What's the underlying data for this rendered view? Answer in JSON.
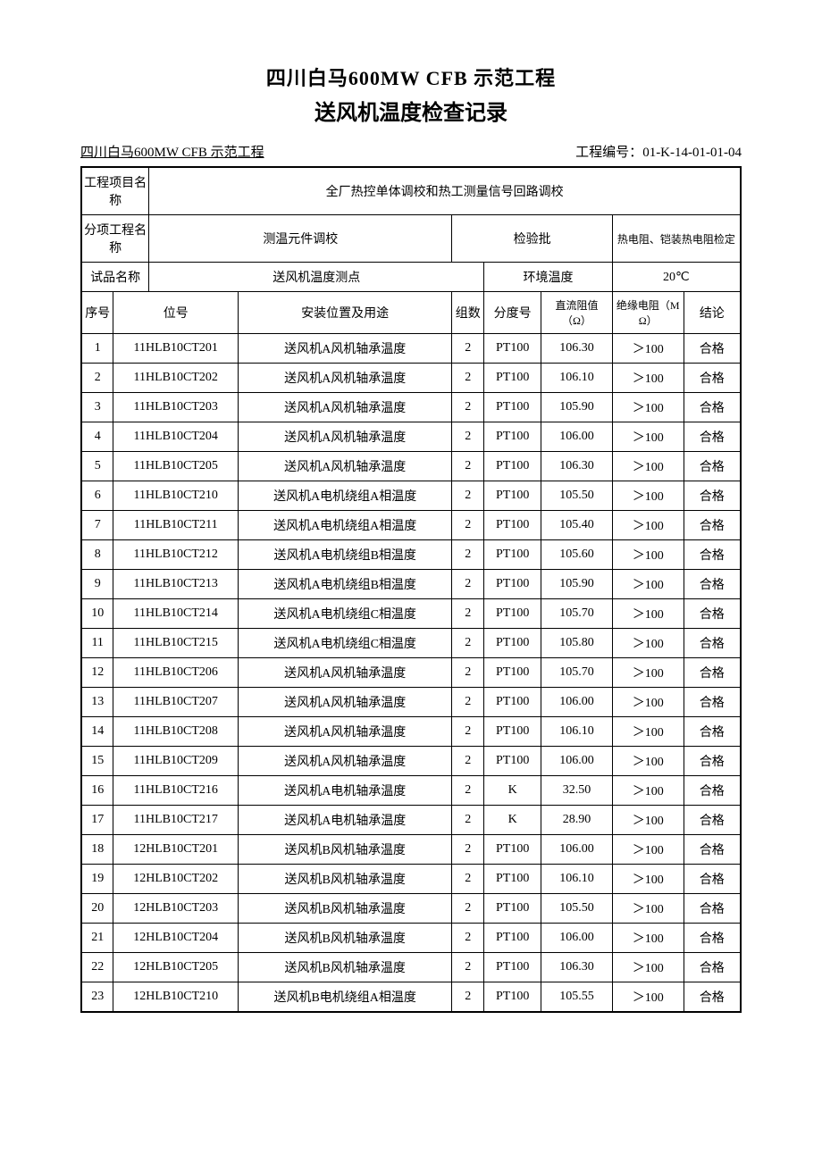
{
  "title_line1": "四川白马600MW CFB 示范工程",
  "title_line2": "送风机温度检查记录",
  "sub_left": "四川白马600MW CFB 示范工程",
  "sub_right_label": "工程编号：",
  "sub_right_value": "01-K-14-01-01-04",
  "hdr": {
    "proj_name_label": "工程项目名称",
    "proj_name_value": "全厂热控单体调校和热工测量信号回路调校",
    "sub_proj_label": "分项工程名称",
    "sub_proj_value": "测温元件调校",
    "inspect_batch_label": "检验批",
    "inspect_batch_value": "热电阻、铠装热电阻检定",
    "sample_name_label": "试品名称",
    "sample_name_value": "送风机温度测点",
    "env_temp_label": "环境温度",
    "env_temp_value": "20℃"
  },
  "cols": {
    "seq": "序号",
    "tag": "位号",
    "desc": "安装位置及用途",
    "group": "组数",
    "scale": "分度号",
    "dcres": "直流阻值（Ω）",
    "ins": "绝缘电阻（MΩ）",
    "result": "结论"
  },
  "rows": [
    {
      "seq": "1",
      "tag": "11HLB10CT201",
      "desc": "送风机A风机轴承温度",
      "grp": "2",
      "scale": "PT100",
      "dc": "106.30",
      "ins": "＞100",
      "res": "合格"
    },
    {
      "seq": "2",
      "tag": "11HLB10CT202",
      "desc": "送风机A风机轴承温度",
      "grp": "2",
      "scale": "PT100",
      "dc": "106.10",
      "ins": "＞100",
      "res": "合格"
    },
    {
      "seq": "3",
      "tag": "11HLB10CT203",
      "desc": "送风机A风机轴承温度",
      "grp": "2",
      "scale": "PT100",
      "dc": "105.90",
      "ins": "＞100",
      "res": "合格"
    },
    {
      "seq": "4",
      "tag": "11HLB10CT204",
      "desc": "送风机A风机轴承温度",
      "grp": "2",
      "scale": "PT100",
      "dc": "106.00",
      "ins": "＞100",
      "res": "合格"
    },
    {
      "seq": "5",
      "tag": "11HLB10CT205",
      "desc": "送风机A风机轴承温度",
      "grp": "2",
      "scale": "PT100",
      "dc": "106.30",
      "ins": "＞100",
      "res": "合格"
    },
    {
      "seq": "6",
      "tag": "11HLB10CT210",
      "desc": "送风机A电机绕组A相温度",
      "grp": "2",
      "scale": "PT100",
      "dc": "105.50",
      "ins": "＞100",
      "res": "合格"
    },
    {
      "seq": "7",
      "tag": "11HLB10CT211",
      "desc": "送风机A电机绕组A相温度",
      "grp": "2",
      "scale": "PT100",
      "dc": "105.40",
      "ins": "＞100",
      "res": "合格"
    },
    {
      "seq": "8",
      "tag": "11HLB10CT212",
      "desc": "送风机A电机绕组B相温度",
      "grp": "2",
      "scale": "PT100",
      "dc": "105.60",
      "ins": "＞100",
      "res": "合格"
    },
    {
      "seq": "9",
      "tag": "11HLB10CT213",
      "desc": "送风机A电机绕组B相温度",
      "grp": "2",
      "scale": "PT100",
      "dc": "105.90",
      "ins": "＞100",
      "res": "合格"
    },
    {
      "seq": "10",
      "tag": "11HLB10CT214",
      "desc": "送风机A电机绕组C相温度",
      "grp": "2",
      "scale": "PT100",
      "dc": "105.70",
      "ins": "＞100",
      "res": "合格"
    },
    {
      "seq": "11",
      "tag": "11HLB10CT215",
      "desc": "送风机A电机绕组C相温度",
      "grp": "2",
      "scale": "PT100",
      "dc": "105.80",
      "ins": "＞100",
      "res": "合格"
    },
    {
      "seq": "12",
      "tag": "11HLB10CT206",
      "desc": "送风机A风机轴承温度",
      "grp": "2",
      "scale": "PT100",
      "dc": "105.70",
      "ins": "＞100",
      "res": "合格"
    },
    {
      "seq": "13",
      "tag": "11HLB10CT207",
      "desc": "送风机A风机轴承温度",
      "grp": "2",
      "scale": "PT100",
      "dc": "106.00",
      "ins": "＞100",
      "res": "合格"
    },
    {
      "seq": "14",
      "tag": "11HLB10CT208",
      "desc": "送风机A风机轴承温度",
      "grp": "2",
      "scale": "PT100",
      "dc": "106.10",
      "ins": "＞100",
      "res": "合格"
    },
    {
      "seq": "15",
      "tag": "11HLB10CT209",
      "desc": "送风机A风机轴承温度",
      "grp": "2",
      "scale": "PT100",
      "dc": "106.00",
      "ins": "＞100",
      "res": "合格"
    },
    {
      "seq": "16",
      "tag": "11HLB10CT216",
      "desc": "送风机A电机轴承温度",
      "grp": "2",
      "scale": "K",
      "dc": "32.50",
      "ins": "＞100",
      "res": "合格"
    },
    {
      "seq": "17",
      "tag": "11HLB10CT217",
      "desc": "送风机A电机轴承温度",
      "grp": "2",
      "scale": "K",
      "dc": "28.90",
      "ins": "＞100",
      "res": "合格"
    },
    {
      "seq": "18",
      "tag": "12HLB10CT201",
      "desc": "送风机B风机轴承温度",
      "grp": "2",
      "scale": "PT100",
      "dc": "106.00",
      "ins": "＞100",
      "res": "合格"
    },
    {
      "seq": "19",
      "tag": "12HLB10CT202",
      "desc": "送风机B风机轴承温度",
      "grp": "2",
      "scale": "PT100",
      "dc": "106.10",
      "ins": "＞100",
      "res": "合格"
    },
    {
      "seq": "20",
      "tag": "12HLB10CT203",
      "desc": "送风机B风机轴承温度",
      "grp": "2",
      "scale": "PT100",
      "dc": "105.50",
      "ins": "＞100",
      "res": "合格"
    },
    {
      "seq": "21",
      "tag": "12HLB10CT204",
      "desc": "送风机B风机轴承温度",
      "grp": "2",
      "scale": "PT100",
      "dc": "106.00",
      "ins": "＞100",
      "res": "合格"
    },
    {
      "seq": "22",
      "tag": "12HLB10CT205",
      "desc": "送风机B风机轴承温度",
      "grp": "2",
      "scale": "PT100",
      "dc": "106.30",
      "ins": "＞100",
      "res": "合格"
    },
    {
      "seq": "23",
      "tag": "12HLB10CT210",
      "desc": "送风机B电机绕组A相温度",
      "grp": "2",
      "scale": "PT100",
      "dc": "105.55",
      "ins": "＞100",
      "res": "合格"
    }
  ],
  "style": {
    "page_bg": "#ffffff",
    "text_color": "#000000",
    "border_color": "#000000",
    "title_fontsize_pt": 18,
    "body_fontsize_pt": 11,
    "font_family": "SimSun"
  }
}
